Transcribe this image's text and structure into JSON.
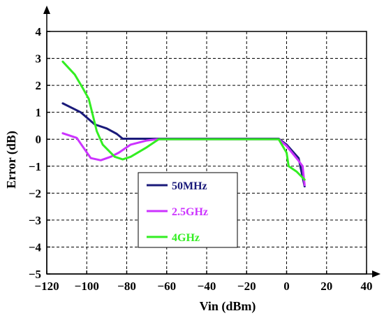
{
  "chart_data": {
    "type": "line",
    "xlabel": "Vin (dBm)",
    "ylabel": "Error (dB)",
    "xlim": [
      -120,
      40
    ],
    "ylim": [
      -5,
      4
    ],
    "xticks": [
      -120,
      -100,
      -80,
      -60,
      -40,
      -20,
      0,
      20,
      40
    ],
    "yticks": [
      4,
      3,
      2,
      1,
      0,
      -1,
      -2,
      -3,
      -4,
      -5
    ],
    "xtick_labels": [
      "−120",
      "−100",
      "−80",
      "−60",
      "−40",
      "−20",
      "0",
      "20",
      "40"
    ],
    "ytick_labels": [
      "4",
      "3",
      "2",
      "1",
      "0",
      "−1",
      "−2",
      "−3",
      "−4",
      "−5"
    ],
    "grid": true,
    "legend_position": "center-left",
    "series": [
      {
        "name": "50MHz",
        "color": "#1a1a7a",
        "points": [
          [
            -112,
            1.33
          ],
          [
            -103,
            1.0
          ],
          [
            -96,
            0.55
          ],
          [
            -90,
            0.4
          ],
          [
            -85,
            0.2
          ],
          [
            -82,
            0.02
          ],
          [
            -60,
            0.02
          ],
          [
            -40,
            0.02
          ],
          [
            -20,
            0.02
          ],
          [
            -4,
            0.02
          ],
          [
            0,
            -0.2
          ],
          [
            6,
            -0.7
          ],
          [
            9,
            -1.75
          ]
        ]
      },
      {
        "name": "2.5GHz",
        "color": "#cc33ff",
        "points": [
          [
            -112,
            0.22
          ],
          [
            -105,
            0.05
          ],
          [
            -98,
            -0.7
          ],
          [
            -93,
            -0.78
          ],
          [
            -88,
            -0.65
          ],
          [
            -84,
            -0.5
          ],
          [
            -78,
            -0.2
          ],
          [
            -70,
            -0.05
          ],
          [
            -65,
            0.0
          ],
          [
            -40,
            0.0
          ],
          [
            -4,
            0.0
          ],
          [
            0,
            -0.25
          ],
          [
            6,
            -0.8
          ],
          [
            8,
            -1.0
          ],
          [
            9,
            -1.7
          ]
        ]
      },
      {
        "name": "4GHz",
        "color": "#33ee22",
        "points": [
          [
            -112,
            2.88
          ],
          [
            -106,
            2.4
          ],
          [
            -102,
            1.9
          ],
          [
            -99,
            1.5
          ],
          [
            -95,
            0.3
          ],
          [
            -92,
            -0.2
          ],
          [
            -86,
            -0.65
          ],
          [
            -82,
            -0.75
          ],
          [
            -78,
            -0.65
          ],
          [
            -70,
            -0.3
          ],
          [
            -64,
            0.0
          ],
          [
            -40,
            0.0
          ],
          [
            -4,
            0.0
          ],
          [
            0,
            -0.5
          ],
          [
            1,
            -1.0
          ],
          [
            5,
            -1.2
          ],
          [
            9,
            -1.5
          ]
        ]
      }
    ]
  }
}
